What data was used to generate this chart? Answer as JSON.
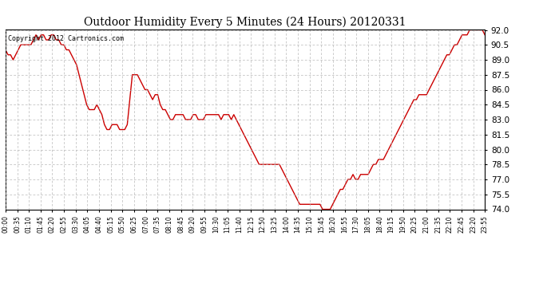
{
  "title": "Outdoor Humidity Every 5 Minutes (24 Hours) 20120331",
  "copyright": "Copyright 2012 Cartronics.com",
  "line_color": "#cc0000",
  "bg_color": "#ffffff",
  "grid_color": "#b0b0b0",
  "ylim": [
    74.0,
    92.0
  ],
  "yticks": [
    74.0,
    75.5,
    77.0,
    78.5,
    80.0,
    81.5,
    83.0,
    84.5,
    86.0,
    87.5,
    89.0,
    90.5,
    92.0
  ],
  "title_fontsize": 10,
  "xlabel_fontsize": 5.5,
  "ylabel_fontsize": 7.5,
  "copyright_fontsize": 6.0,
  "xtick_labels": [
    "00:00",
    "00:35",
    "01:10",
    "01:45",
    "02:20",
    "02:55",
    "03:30",
    "04:05",
    "04:40",
    "05:15",
    "05:50",
    "06:25",
    "07:00",
    "07:35",
    "08:10",
    "08:45",
    "09:20",
    "09:55",
    "10:30",
    "11:05",
    "11:40",
    "12:15",
    "12:50",
    "13:25",
    "14:00",
    "14:35",
    "15:10",
    "15:45",
    "16:20",
    "16:55",
    "17:30",
    "18:05",
    "18:40",
    "19:15",
    "19:50",
    "20:25",
    "21:00",
    "21:35",
    "22:10",
    "22:45",
    "23:20",
    "23:55"
  ],
  "humidity": [
    90.0,
    89.5,
    89.5,
    89.0,
    89.5,
    90.0,
    90.5,
    90.5,
    90.5,
    90.5,
    90.5,
    91.0,
    91.5,
    91.0,
    91.5,
    91.5,
    91.0,
    91.0,
    91.5,
    91.5,
    91.0,
    91.0,
    90.5,
    90.5,
    90.0,
    90.0,
    89.5,
    89.0,
    88.5,
    87.5,
    86.5,
    85.5,
    84.5,
    84.0,
    84.0,
    84.0,
    84.5,
    84.0,
    83.5,
    82.5,
    82.0,
    82.0,
    82.5,
    82.5,
    82.5,
    82.0,
    82.0,
    82.0,
    82.5,
    85.0,
    87.5,
    87.5,
    87.5,
    87.0,
    86.5,
    86.0,
    86.0,
    85.5,
    85.0,
    85.5,
    85.5,
    84.5,
    84.0,
    84.0,
    83.5,
    83.0,
    83.0,
    83.5,
    83.5,
    83.5,
    83.5,
    83.0,
    83.0,
    83.0,
    83.5,
    83.5,
    83.0,
    83.0,
    83.0,
    83.5,
    83.5,
    83.5,
    83.5,
    83.5,
    83.5,
    83.0,
    83.5,
    83.5,
    83.5,
    83.0,
    83.5,
    83.0,
    82.5,
    82.0,
    81.5,
    81.0,
    80.5,
    80.0,
    79.5,
    79.0,
    78.5,
    78.5,
    78.5,
    78.5,
    78.5,
    78.5,
    78.5,
    78.5,
    78.5,
    78.0,
    77.5,
    77.0,
    76.5,
    76.0,
    75.5,
    75.0,
    74.5,
    74.5,
    74.5,
    74.5,
    74.5,
    74.5,
    74.5,
    74.5,
    74.5,
    74.0,
    74.0,
    74.0,
    74.0,
    74.5,
    75.0,
    75.5,
    76.0,
    76.0,
    76.5,
    77.0,
    77.0,
    77.5,
    77.0,
    77.0,
    77.5,
    77.5,
    77.5,
    77.5,
    78.0,
    78.5,
    78.5,
    79.0,
    79.0,
    79.0,
    79.5,
    80.0,
    80.5,
    81.0,
    81.5,
    82.0,
    82.5,
    83.0,
    83.5,
    84.0,
    84.5,
    85.0,
    85.0,
    85.5,
    85.5,
    85.5,
    85.5,
    86.0,
    86.5,
    87.0,
    87.5,
    88.0,
    88.5,
    89.0,
    89.5,
    89.5,
    90.0,
    90.5,
    90.5,
    91.0,
    91.5,
    91.5,
    91.5,
    92.0,
    92.0,
    92.0,
    92.0,
    92.0,
    92.0,
    91.5
  ]
}
